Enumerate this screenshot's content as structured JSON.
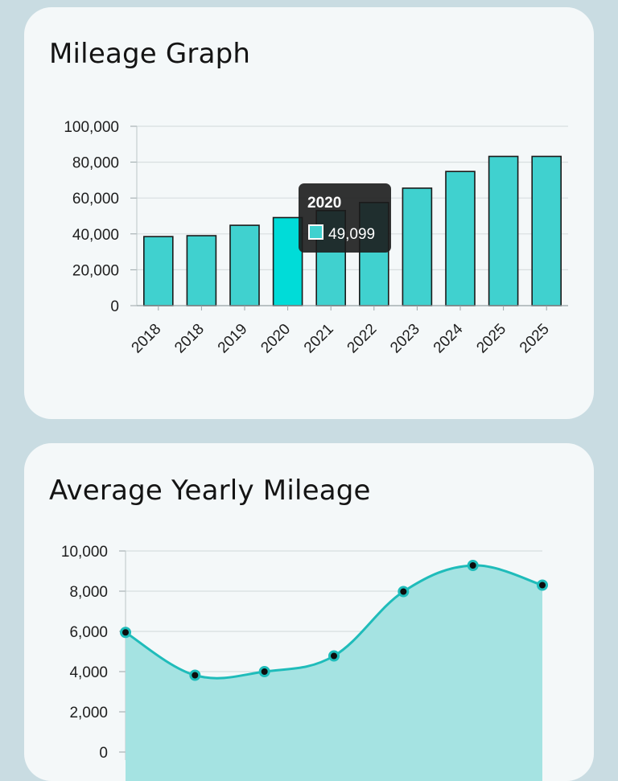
{
  "charts": {
    "mileage": {
      "title": "Mileage Graph",
      "chart_data": {
        "type": "bar",
        "title": "Mileage Graph",
        "xlabel": "",
        "ylabel": "",
        "categories": [
          "2018",
          "2018",
          "2019",
          "2020",
          "2021",
          "2022",
          "2023",
          "2024",
          "2025",
          "2025"
        ],
        "values": [
          38500,
          39000,
          44800,
          49099,
          53000,
          57500,
          65500,
          74800,
          83200,
          83200
        ],
        "ylim": [
          0,
          100000
        ],
        "yticks": [
          0,
          20000,
          40000,
          60000,
          80000,
          100000
        ],
        "ytick_labels": [
          "0",
          "20,000",
          "40,000",
          "60,000",
          "80,000",
          "100,000"
        ],
        "grid": true,
        "highlighted_index": 3
      },
      "tooltip": {
        "title": "2020",
        "value": "49,099"
      },
      "colors": {
        "bar": "#40d1cf",
        "bar_active": "#00dcd8",
        "bar_stroke": "#1a1a1a",
        "grid": "#d8dee0",
        "tooltip_bg": "#1c1c1c"
      }
    },
    "yearly": {
      "title": "Average Yearly Mileage",
      "chart_data": {
        "type": "area",
        "title": "Average Yearly Mileage",
        "xlabel": "",
        "ylabel": "",
        "x": [
          0,
          1,
          2,
          3,
          4,
          5,
          6
        ],
        "values": [
          5950,
          3820,
          4000,
          4780,
          7980,
          9280,
          8300
        ],
        "ylim": [
          0,
          10000
        ],
        "yticks": [
          0,
          2000,
          4000,
          6000,
          8000,
          10000
        ],
        "ytick_labels": [
          "0",
          "2,000",
          "4,000",
          "6,000",
          "8,000",
          "10,000"
        ],
        "grid": true
      },
      "colors": {
        "line": "#1fbcba",
        "fill": "#a5e3e2",
        "point_fill": "#0d0d0d",
        "point_stroke": "#1fbcba",
        "grid": "#d8dee0"
      }
    }
  }
}
